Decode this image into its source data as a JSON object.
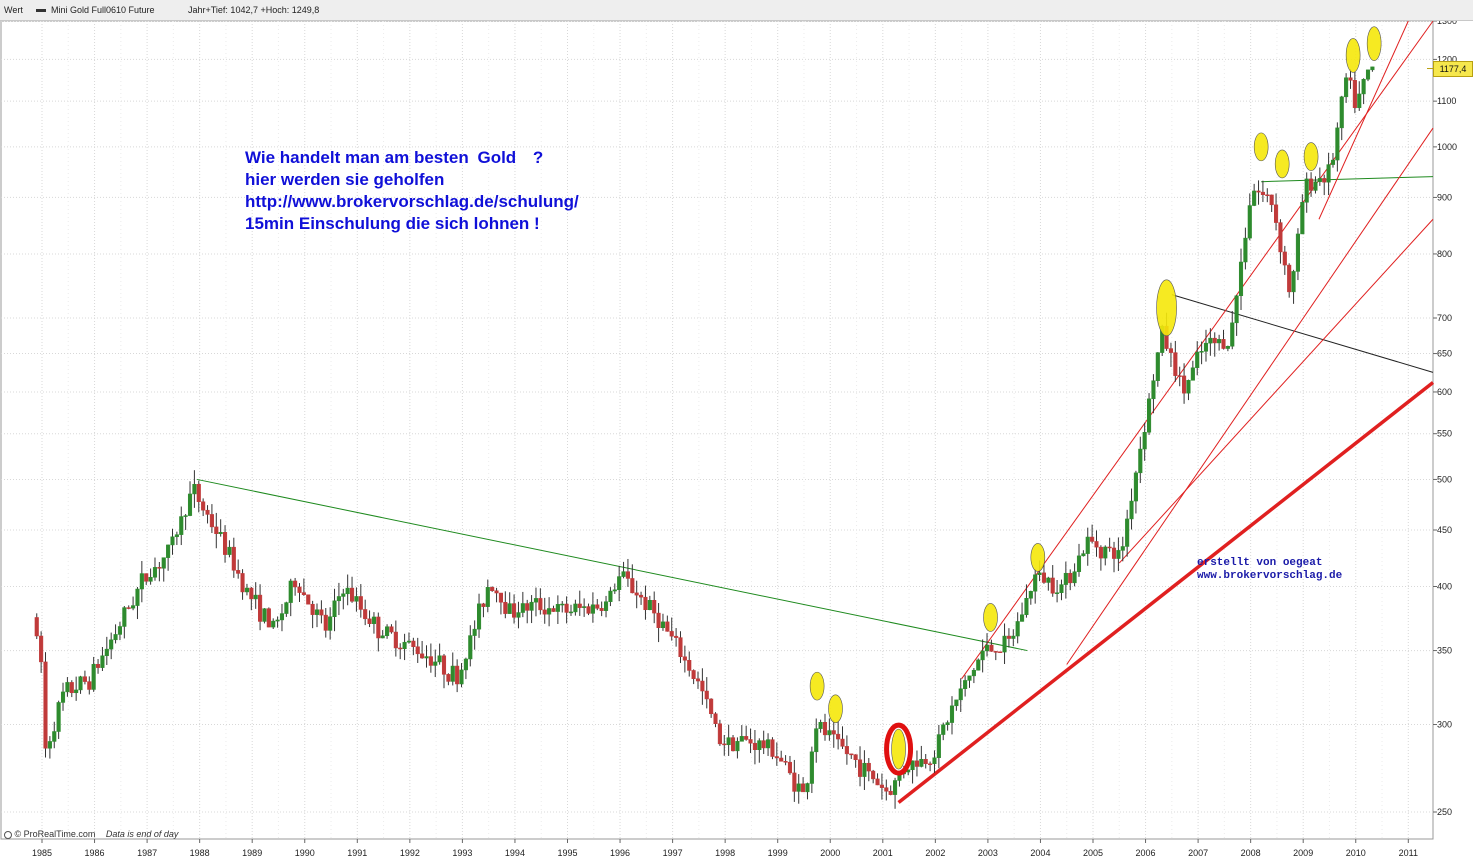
{
  "header": {
    "wert_label": "Wert",
    "instrument": "Mini Gold Full0610 Future",
    "range_text": "Jahr+Tief: 1042,7 +Hoch: 1249,8"
  },
  "annotation": {
    "line1": "Wie handelt man am besten",
    "line1_word": "Gold",
    "line1_q": "?",
    "line2": "hier werden sie geholfen",
    "line3": "http://www.brokervorschlag.de/schulung/",
    "line4": "15min Einschulung die sich lohnen !"
  },
  "signature": {
    "line1": "erstellt von oegeat",
    "line2": "www.brokervorschlag.de"
  },
  "footer": {
    "source": "© ProRealTime.com",
    "note": "Data is end of day"
  },
  "last_price_label": "1177,4",
  "colors": {
    "up": "#2e8b2e",
    "down": "#c03a3a",
    "grid": "#d8d8d8",
    "trend_green": "#1e8a1e",
    "trend_red": "#e02020",
    "marker_fill": "#f5e80a",
    "annotation_text": "#1010d8"
  },
  "chart_data": {
    "type": "candlestick",
    "title": "Mini Gold Full0610 Future",
    "y_scale": "log",
    "ylim": [
      245,
      1300
    ],
    "y_ticks": [
      "1300",
      "1200",
      "1100",
      "1000",
      "900",
      "800",
      "700",
      "650",
      "600",
      "550",
      "500",
      "450",
      "400",
      "350",
      "300",
      "250"
    ],
    "x_ticks": [
      "1985",
      "1986",
      "1987",
      "1988",
      "1989",
      "1990",
      "1991",
      "1992",
      "1993",
      "1994",
      "1995",
      "1996",
      "1997",
      "1998",
      "1999",
      "2000",
      "2001",
      "2002",
      "2003",
      "2004",
      "2005",
      "2006",
      "2007",
      "2008",
      "2009",
      "2010",
      "2011"
    ],
    "grid": true,
    "last_price": 1177.4,
    "price_anchors": [
      {
        "date": 1984.9,
        "price": 375
      },
      {
        "date": 1985.1,
        "price": 335
      },
      {
        "date": 1985.15,
        "price": 285
      },
      {
        "date": 1985.5,
        "price": 320
      },
      {
        "date": 1986.0,
        "price": 330
      },
      {
        "date": 1986.5,
        "price": 365
      },
      {
        "date": 1987.0,
        "price": 405
      },
      {
        "date": 1987.5,
        "price": 430
      },
      {
        "date": 1987.95,
        "price": 490
      },
      {
        "date": 1988.5,
        "price": 440
      },
      {
        "date": 1989.0,
        "price": 395
      },
      {
        "date": 1989.5,
        "price": 365
      },
      {
        "date": 1989.9,
        "price": 405
      },
      {
        "date": 1990.5,
        "price": 365
      },
      {
        "date": 1990.8,
        "price": 400
      },
      {
        "date": 1991.5,
        "price": 365
      },
      {
        "date": 1992.0,
        "price": 355
      },
      {
        "date": 1992.5,
        "price": 345
      },
      {
        "date": 1993.0,
        "price": 330
      },
      {
        "date": 1993.6,
        "price": 405
      },
      {
        "date": 1994.0,
        "price": 380
      },
      {
        "date": 1994.5,
        "price": 385
      },
      {
        "date": 1995.0,
        "price": 380
      },
      {
        "date": 1995.8,
        "price": 385
      },
      {
        "date": 1996.1,
        "price": 410
      },
      {
        "date": 1996.8,
        "price": 375
      },
      {
        "date": 1997.2,
        "price": 350
      },
      {
        "date": 1997.6,
        "price": 325
      },
      {
        "date": 1998.0,
        "price": 290
      },
      {
        "date": 1998.5,
        "price": 290
      },
      {
        "date": 1999.0,
        "price": 285
      },
      {
        "date": 1999.6,
        "price": 258
      },
      {
        "date": 1999.8,
        "price": 300
      },
      {
        "date": 2000.5,
        "price": 280
      },
      {
        "date": 2001.2,
        "price": 260
      },
      {
        "date": 2001.5,
        "price": 275
      },
      {
        "date": 2002.0,
        "price": 280
      },
      {
        "date": 2002.4,
        "price": 310
      },
      {
        "date": 2003.0,
        "price": 350
      },
      {
        "date": 2003.5,
        "price": 355
      },
      {
        "date": 2004.0,
        "price": 410
      },
      {
        "date": 2004.5,
        "price": 400
      },
      {
        "date": 2005.0,
        "price": 440
      },
      {
        "date": 2005.6,
        "price": 425
      },
      {
        "date": 2006.0,
        "price": 540
      },
      {
        "date": 2006.4,
        "price": 680
      },
      {
        "date": 2006.8,
        "price": 600
      },
      {
        "date": 2007.2,
        "price": 660
      },
      {
        "date": 2007.7,
        "price": 670
      },
      {
        "date": 2008.1,
        "price": 920
      },
      {
        "date": 2008.5,
        "price": 890
      },
      {
        "date": 2008.85,
        "price": 730
      },
      {
        "date": 2009.1,
        "price": 920
      },
      {
        "date": 2009.6,
        "price": 950
      },
      {
        "date": 2009.9,
        "price": 1150
      },
      {
        "date": 2010.1,
        "price": 1090
      },
      {
        "date": 2010.35,
        "price": 1177.4
      }
    ],
    "trendlines": [
      {
        "color": "green",
        "from": [
          1987.95,
          500
        ],
        "to": [
          2003.75,
          350
        ]
      },
      {
        "color": "green",
        "from": [
          2008.2,
          930
        ],
        "to": [
          2011.5,
          940
        ]
      },
      {
        "color": "black",
        "from": [
          2006.5,
          735
        ],
        "to": [
          2011.5,
          625
        ]
      },
      {
        "color": "red-thick",
        "from": [
          2001.3,
          255
        ],
        "to": [
          2011.5,
          612
        ]
      },
      {
        "color": "red",
        "from": [
          2002.5,
          330
        ],
        "to": [
          2011.5,
          1300
        ]
      },
      {
        "color": "red",
        "from": [
          2004.5,
          340
        ],
        "to": [
          2011.5,
          1040
        ]
      },
      {
        "color": "red",
        "from": [
          2005.5,
          420
        ],
        "to": [
          2011.5,
          860
        ]
      },
      {
        "color": "red",
        "from": [
          2009.3,
          860
        ],
        "to": [
          2011.0,
          1300
        ]
      }
    ],
    "marked_points": [
      {
        "date": 1999.75,
        "price": 325,
        "color": "yellow"
      },
      {
        "date": 2000.1,
        "price": 310,
        "color": "yellow"
      },
      {
        "date": 2001.3,
        "price": 285,
        "color": "red-ring"
      },
      {
        "date": 2003.05,
        "price": 375,
        "color": "yellow"
      },
      {
        "date": 2003.95,
        "price": 425,
        "color": "yellow"
      },
      {
        "date": 2006.4,
        "price": 715,
        "color": "yellow"
      },
      {
        "date": 2008.2,
        "price": 1000,
        "color": "yellow"
      },
      {
        "date": 2008.6,
        "price": 965,
        "color": "yellow"
      },
      {
        "date": 2009.15,
        "price": 980,
        "color": "yellow"
      },
      {
        "date": 2009.95,
        "price": 1210,
        "color": "yellow"
      },
      {
        "date": 2010.35,
        "price": 1240,
        "color": "yellow"
      }
    ]
  }
}
